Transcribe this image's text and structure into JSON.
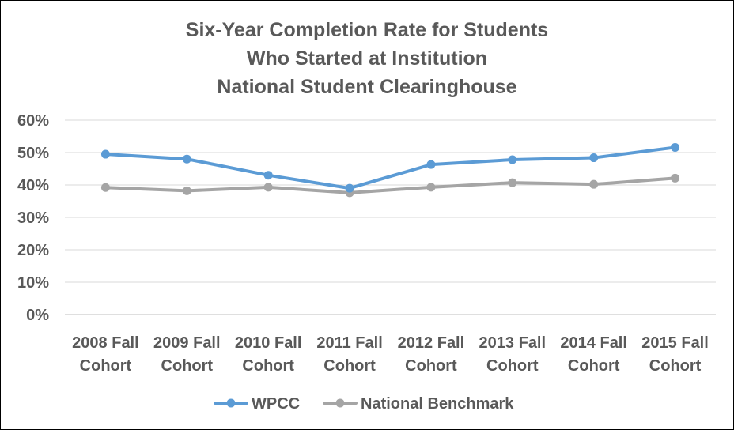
{
  "chart_data": {
    "type": "line",
    "title": [
      "Six-Year Completion Rate for Students",
      "Who Started at Institution",
      "National Student Clearinghouse"
    ],
    "categories": [
      [
        "2008 Fall",
        "Cohort"
      ],
      [
        "2009 Fall",
        "Cohort"
      ],
      [
        "2010 Fall",
        "Cohort"
      ],
      [
        "2011 Fall",
        "Cohort"
      ],
      [
        "2012 Fall",
        "Cohort"
      ],
      [
        "2013 Fall",
        "Cohort"
      ],
      [
        "2014 Fall",
        "Cohort"
      ],
      [
        "2015 Fall",
        "Cohort"
      ]
    ],
    "series": [
      {
        "name": "WPCC",
        "color": "#5b9bd5",
        "values": [
          49.5,
          48,
          43,
          39,
          46.3,
          47.8,
          48.4,
          51.6
        ]
      },
      {
        "name": "National Benchmark",
        "color": "#a5a5a5",
        "values": [
          39.2,
          38.2,
          39.3,
          37.6,
          39.3,
          40.7,
          40.2,
          42.1
        ]
      }
    ],
    "ylim": [
      0,
      60
    ],
    "yticks": [
      "0%",
      "10%",
      "20%",
      "30%",
      "40%",
      "50%",
      "60%"
    ],
    "grid": true,
    "legend": "bottom",
    "xlabel": "",
    "ylabel": ""
  }
}
